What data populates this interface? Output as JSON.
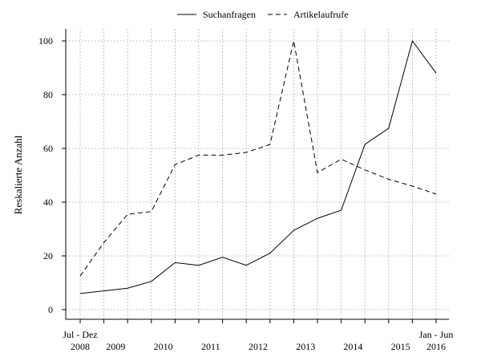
{
  "chart_data": {
    "type": "line",
    "ylabel": "Reskalierte Anzahl",
    "xlabel": "",
    "ylim": [
      0,
      100
    ],
    "y_ticks": [
      0,
      20,
      40,
      60,
      80,
      100
    ],
    "grid": true,
    "legend_placement": "top-center",
    "x_points": 16,
    "x_tick_labels": [
      {
        "index": 0,
        "top": "Jul - Dez",
        "bottom": "2008"
      },
      {
        "index": 1.5,
        "top": "",
        "bottom": "2009"
      },
      {
        "index": 3.5,
        "top": "",
        "bottom": "2010"
      },
      {
        "index": 5.5,
        "top": "",
        "bottom": "2011"
      },
      {
        "index": 7.5,
        "top": "",
        "bottom": "2012"
      },
      {
        "index": 9.5,
        "top": "",
        "bottom": "2013"
      },
      {
        "index": 11.5,
        "top": "",
        "bottom": "2014"
      },
      {
        "index": 13.5,
        "top": "",
        "bottom": "2015"
      },
      {
        "index": 15,
        "top": "Jan - Jun",
        "bottom": "2016"
      }
    ],
    "series": [
      {
        "name": "Suchanfragen",
        "style": "solid",
        "values": [
          6,
          7,
          8,
          10.5,
          17.5,
          16.5,
          19.5,
          16.5,
          21,
          29.5,
          34,
          37,
          61.5,
          67.5,
          100,
          88
        ]
      },
      {
        "name": "Artikelaufrufe",
        "style": "dashed",
        "values": [
          12.5,
          25,
          35.5,
          36.5,
          54,
          57.5,
          57.5,
          58.5,
          61.5,
          100,
          51,
          56,
          52,
          48.5,
          46,
          43
        ]
      }
    ]
  }
}
